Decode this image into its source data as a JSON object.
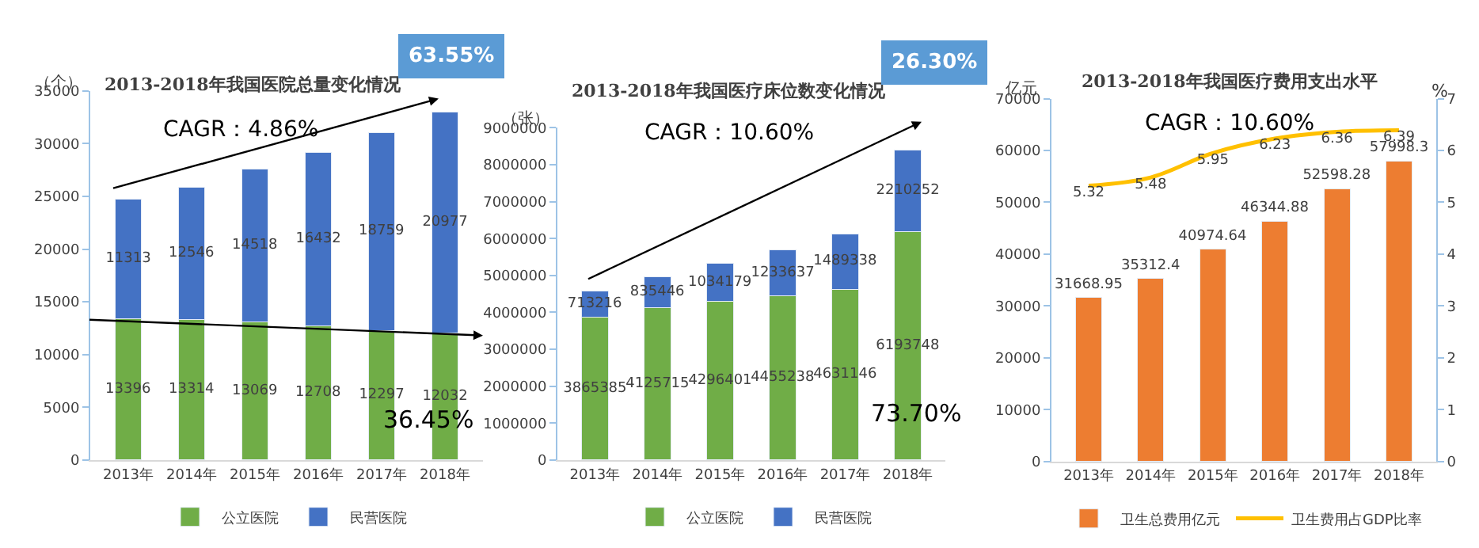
{
  "chart_data": [
    {
      "type": "bar",
      "title": "2013-2018年我国医院总量变化情况",
      "ylabel": "（个）",
      "stacked": true,
      "data_labels": true,
      "legend": "bottom",
      "categories": [
        "2013年",
        "2014年",
        "2015年",
        "2016年",
        "2017年",
        "2018年"
      ],
      "series": [
        {
          "name": "公立医院",
          "color": "#70ad47",
          "values": [
            13396,
            13314,
            13069,
            12708,
            12297,
            12032
          ]
        },
        {
          "name": "民营医院",
          "color": "#4472c4",
          "values": [
            11313,
            12546,
            14518,
            16432,
            18759,
            20977
          ]
        }
      ],
      "ylim": [
        0,
        35000
      ],
      "yticks": [
        0,
        5000,
        10000,
        15000,
        20000,
        25000,
        30000,
        35000
      ],
      "annotations": [
        "CAGR：4.86%",
        "63.55%",
        "36.45%"
      ]
    },
    {
      "type": "bar",
      "title": "2013-2018年我国医疗床位数变化情况",
      "ylabel": "（张）",
      "stacked": true,
      "data_labels": true,
      "legend": "bottom",
      "categories": [
        "2013年",
        "2014年",
        "2015年",
        "2016年",
        "2017年",
        "2018年"
      ],
      "series": [
        {
          "name": "公立医院",
          "color": "#70ad47",
          "values": [
            3865385,
            4125715,
            4296401,
            4455238,
            4631146,
            6193748
          ]
        },
        {
          "name": "民营医院",
          "color": "#4472c4",
          "values": [
            713216,
            835446,
            1034179,
            1233637,
            1489338,
            2210252
          ]
        }
      ],
      "ylim": [
        0,
        9000000
      ],
      "yticks": [
        0,
        1000000,
        2000000,
        3000000,
        4000000,
        5000000,
        6000000,
        7000000,
        8000000,
        9000000
      ],
      "annotations": [
        "CAGR：10.60%",
        "26.30%",
        "73.70%"
      ]
    },
    {
      "type": "bar",
      "title": "2013-2018年我国医疗费用支出水平",
      "ylabel": "亿元",
      "y2label": "%",
      "data_labels": true,
      "legend": "bottom",
      "marker": "none",
      "categories": [
        "2013年",
        "2014年",
        "2015年",
        "2016年",
        "2017年",
        "2018年"
      ],
      "series": [
        {
          "name": "卫生总费用亿元",
          "color": "#ed7d31",
          "values": [
            31668.95,
            35312.4,
            40974.64,
            46344.88,
            52598.28,
            57998.3
          ]
        },
        {
          "name": "卫生费用占GDP比率",
          "type": "line",
          "axis": "y2",
          "color": "#ffc000",
          "values": [
            5.32,
            5.48,
            5.95,
            6.23,
            6.36,
            6.39
          ]
        }
      ],
      "ylim": [
        0,
        70000
      ],
      "yticks": [
        0,
        10000,
        20000,
        30000,
        40000,
        50000,
        60000,
        70000
      ],
      "y2lim": [
        0,
        7
      ],
      "y2ticks": [
        0,
        1,
        2,
        3,
        4,
        5,
        6,
        7
      ],
      "annotations": [
        "CAGR：10.60%"
      ]
    }
  ]
}
